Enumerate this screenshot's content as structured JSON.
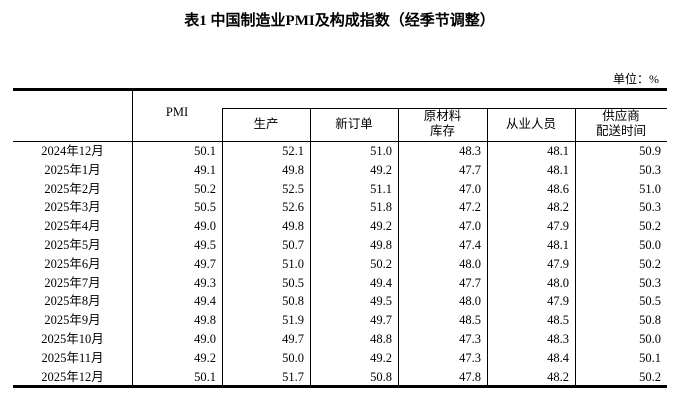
{
  "title": "表1 中国制造业PMI及构成指数（经季节调整）",
  "unit": "单位：%",
  "columns": [
    "PMI",
    "生产",
    "新订单",
    "原材料\n库存",
    "从业人员",
    "供应商\n配送时间"
  ],
  "column_lines": [
    [
      "PMI"
    ],
    [
      "生产"
    ],
    [
      "新订单"
    ],
    [
      "原材料",
      "库存"
    ],
    [
      "从业人员"
    ],
    [
      "供应商",
      "配送时间"
    ]
  ],
  "rows": [
    {
      "month": "2024年12月",
      "values": [
        "50.1",
        "52.1",
        "51.0",
        "48.3",
        "48.1",
        "50.9"
      ]
    },
    {
      "month": "2025年1月",
      "values": [
        "49.1",
        "49.8",
        "49.2",
        "47.7",
        "48.1",
        "50.3"
      ]
    },
    {
      "month": "2025年2月",
      "values": [
        "50.2",
        "52.5",
        "51.1",
        "47.0",
        "48.6",
        "51.0"
      ]
    },
    {
      "month": "2025年3月",
      "values": [
        "50.5",
        "52.6",
        "51.8",
        "47.2",
        "48.2",
        "50.3"
      ]
    },
    {
      "month": "2025年4月",
      "values": [
        "49.0",
        "49.8",
        "49.2",
        "47.0",
        "47.9",
        "50.2"
      ]
    },
    {
      "month": "2025年5月",
      "values": [
        "49.5",
        "50.7",
        "49.8",
        "47.4",
        "48.1",
        "50.0"
      ]
    },
    {
      "month": "2025年6月",
      "values": [
        "49.7",
        "51.0",
        "50.2",
        "48.0",
        "47.9",
        "50.2"
      ]
    },
    {
      "month": "2025年7月",
      "values": [
        "49.3",
        "50.5",
        "49.4",
        "47.7",
        "48.0",
        "50.3"
      ]
    },
    {
      "month": "2025年8月",
      "values": [
        "49.4",
        "50.8",
        "49.5",
        "48.0",
        "47.9",
        "50.5"
      ]
    },
    {
      "month": "2025年9月",
      "values": [
        "49.8",
        "51.9",
        "49.7",
        "48.5",
        "48.5",
        "50.8"
      ]
    },
    {
      "month": "2025年10月",
      "values": [
        "49.0",
        "49.7",
        "48.8",
        "47.3",
        "48.3",
        "50.0"
      ]
    },
    {
      "month": "2025年11月",
      "values": [
        "49.2",
        "50.0",
        "49.2",
        "47.3",
        "48.4",
        "50.1"
      ]
    },
    {
      "month": "2025年12月",
      "values": [
        "50.1",
        "51.7",
        "50.8",
        "47.8",
        "48.2",
        "50.2"
      ]
    }
  ]
}
